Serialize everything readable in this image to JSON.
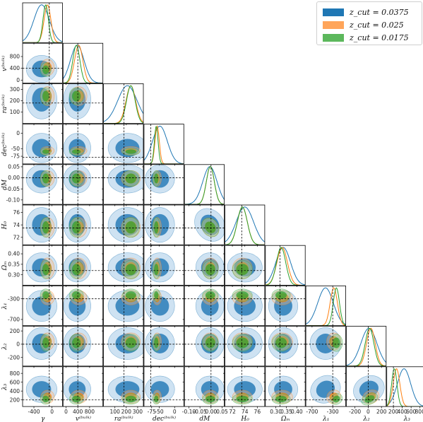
{
  "chart_data": {
    "type": "corner",
    "parameters": [
      {
        "label": "γ",
        "ticks": [
          -400,
          0
        ],
        "range": [
          -650,
          230
        ],
        "truth": -60
      },
      {
        "label": "v^(bulk)",
        "ticks": [
          0,
          400,
          800
        ],
        "range": [
          -100,
          1250
        ],
        "truth": 400
      },
      {
        "label": "ra^(bulk)",
        "ticks": [
          100,
          200,
          300
        ],
        "range": [
          0,
          350
        ],
        "truth": 180
      },
      {
        "label": "dec^(bulk)",
        "ticks": [
          -75,
          -50,
          0
        ],
        "range": [
          -100,
          30
        ],
        "truth": -78
      },
      {
        "label": "dM",
        "ticks": [
          -0.1,
          -0.05,
          0.0,
          0.05
        ],
        "range": [
          -0.12,
          0.06
        ],
        "truth": 0.0
      },
      {
        "label": "H_0",
        "ticks": [
          72,
          74,
          76
        ],
        "range": [
          70.8,
          77.2
        ],
        "truth": 73.5
      },
      {
        "label": "Ω_m",
        "ticks": [
          0.3,
          0.35,
          0.4
        ],
        "range": [
          0.25,
          0.44
        ],
        "truth": 0.32
      },
      {
        "label": "λ_1",
        "ticks": [
          -700,
          -300
        ],
        "range": [
          -820,
          -50
        ],
        "truth": -300
      },
      {
        "label": "λ_2",
        "ticks": [
          -200,
          0,
          200
        ],
        "range": [
          -330,
          270
        ],
        "truth": 0
      },
      {
        "label": "λ_3",
        "ticks": [
          200,
          400,
          600,
          800
        ],
        "range": [
          50,
          950
        ],
        "truth": 200
      }
    ],
    "series": [
      {
        "name": "z_cut = 0.0375",
        "color": "#1f77b4",
        "mean": [
          -230,
          380,
          210,
          -48,
          -0.005,
          74.0,
          0.335,
          -440,
          10,
          440
        ],
        "sd": [
          170,
          230,
          85,
          24,
          0.032,
          1.4,
          0.035,
          150,
          120,
          150
        ]
      },
      {
        "name": "z_cut = 0.025",
        "color": "#ff7f0e",
        "mean": [
          -100,
          430,
          240,
          -57,
          -0.003,
          73.6,
          0.33,
          -280,
          40,
          270
        ],
        "sd": [
          75,
          140,
          42,
          7,
          0.018,
          0.8,
          0.025,
          70,
          65,
          75
        ]
      },
      {
        "name": "z_cut = 0.0175",
        "color": "#2ca02c",
        "mean": [
          -140,
          350,
          240,
          -60,
          -0.003,
          73.6,
          0.325,
          -230,
          20,
          220
        ],
        "sd": [
          60,
          120,
          38,
          6,
          0.018,
          0.8,
          0.022,
          60,
          65,
          60
        ]
      }
    ],
    "legend_position": "top-right"
  },
  "axis_titles": {
    "ylabels": [
      "",
      "v⁽ᵇᵘˡᵏ⁾",
      "ra⁽ᵇᵘˡᵏ⁾",
      "dec⁽ᵇᵘˡᵏ⁾",
      "dM",
      "H₀",
      "Ωₘ",
      "λ₁",
      "λ₂",
      "λ₃"
    ],
    "xlabels": [
      "γ",
      "v⁽ᵇᵘˡᵏ⁾",
      "ra⁽ᵇᵘˡᵏ⁾",
      "dec⁽ᵇᵘˡᵏ⁾",
      "dM",
      "H₀",
      "Ωₘ",
      "λ₁",
      "λ₂",
      "λ₃"
    ]
  },
  "legend": {
    "entries": [
      {
        "label": "z_cut = 0.0375",
        "color": "#1f77b4"
      },
      {
        "label": "z_cut = 0.025",
        "color": "#ff7f0e"
      },
      {
        "label": "z_cut = 0.0175",
        "color": "#2ca02c"
      }
    ]
  }
}
